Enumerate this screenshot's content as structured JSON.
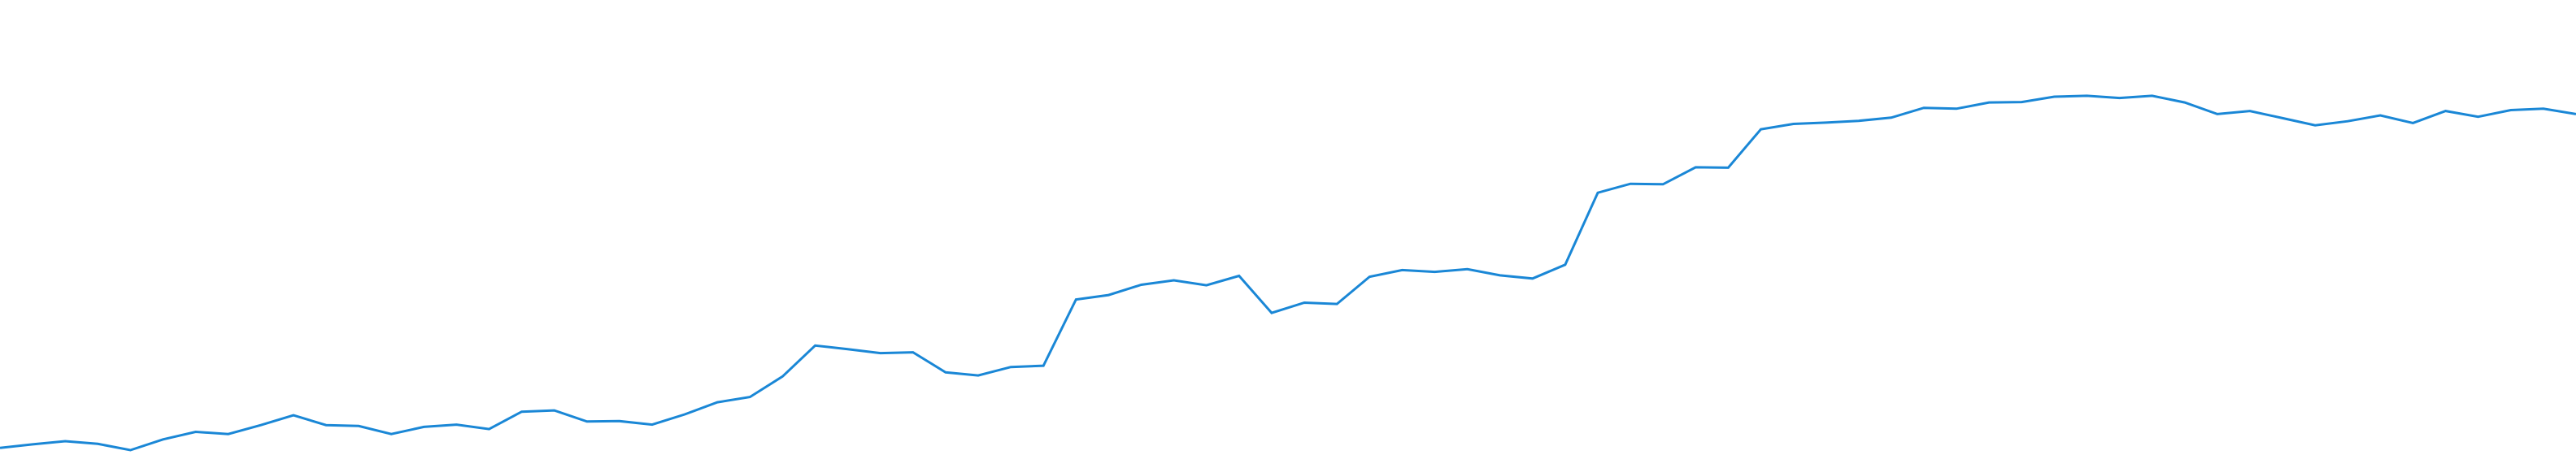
{
  "chart_data": {
    "type": "line",
    "title": "",
    "xlabel": "",
    "ylabel": "",
    "grid": false,
    "legend": "none",
    "xlim": [
      0,
      79
    ],
    "ylim": [
      0,
      100
    ],
    "series": [
      {
        "color": "#1a87d6",
        "x": [
          0,
          1,
          2,
          3,
          4,
          5,
          6,
          7,
          8,
          9,
          10,
          11,
          12,
          13,
          14,
          15,
          16,
          17,
          18,
          19,
          20,
          21,
          22,
          23,
          24,
          25,
          26,
          27,
          28,
          29,
          30,
          31,
          32,
          33,
          34,
          35,
          36,
          37,
          38,
          39,
          40,
          41,
          42,
          43,
          44,
          45,
          46,
          47,
          48,
          49,
          50,
          51,
          52,
          53,
          54,
          55,
          56,
          57,
          58,
          59,
          60,
          61,
          62,
          63,
          64,
          65,
          66,
          67,
          68,
          69,
          70,
          71,
          72,
          73,
          74,
          75,
          76,
          77,
          78,
          79
        ],
        "y": [
          0.5,
          1.3,
          2.0,
          1.4,
          0.0,
          2.4,
          4.1,
          3.6,
          5.6,
          7.8,
          5.6,
          5.4,
          3.6,
          5.2,
          5.7,
          4.7,
          8.6,
          8.9,
          6.4,
          6.5,
          5.7,
          8.0,
          10.7,
          11.9,
          16.5,
          23.4,
          22.6,
          21.7,
          21.9,
          17.4,
          16.7,
          18.6,
          18.9,
          33.7,
          34.7,
          37.0,
          38.0,
          36.9,
          39.0,
          30.7,
          33.0,
          32.7,
          38.8,
          40.3,
          39.9,
          40.5,
          39.1,
          38.4,
          41.5,
          57.6,
          59.6,
          59.5,
          63.3,
          63.2,
          71.8,
          73.0,
          73.3,
          73.7,
          74.4,
          76.6,
          76.4,
          77.8,
          77.9,
          79.1,
          79.3,
          78.8,
          79.3,
          77.8,
          75.2,
          75.9,
          74.3,
          72.7,
          73.6,
          74.9,
          73.2,
          75.9,
          74.6,
          76.1,
          76.4,
          75.2
        ]
      }
    ]
  }
}
